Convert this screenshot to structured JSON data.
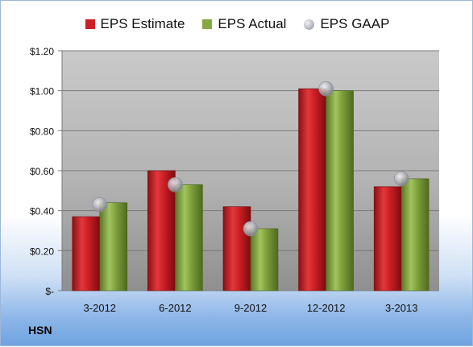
{
  "chart_data": {
    "type": "bar",
    "ticker": "HSN",
    "categories": [
      "3-2012",
      "6-2012",
      "9-2012",
      "12-2012",
      "3-2013"
    ],
    "series": [
      {
        "name": "EPS Estimate",
        "kind": "bar",
        "color": "#cc1f26",
        "values": [
          0.37,
          0.6,
          0.42,
          1.01,
          0.52
        ]
      },
      {
        "name": "EPS Actual",
        "kind": "bar",
        "color": "#86a840",
        "values": [
          0.44,
          0.53,
          0.31,
          1.0,
          0.56
        ]
      },
      {
        "name": "EPS GAAP",
        "kind": "marker",
        "color": "#b8bbc2",
        "values": [
          0.43,
          0.53,
          0.31,
          1.01,
          0.56
        ]
      }
    ],
    "ylim": [
      0,
      1.2
    ],
    "y_ticks": [
      0,
      0.2,
      0.4,
      0.6,
      0.8,
      1.0,
      1.2
    ],
    "y_tick_labels": [
      "$-",
      "$0.20",
      "$0.40",
      "$0.60",
      "$0.80",
      "$1.00",
      "$1.20"
    ],
    "grid": true,
    "legend_position": "top"
  }
}
